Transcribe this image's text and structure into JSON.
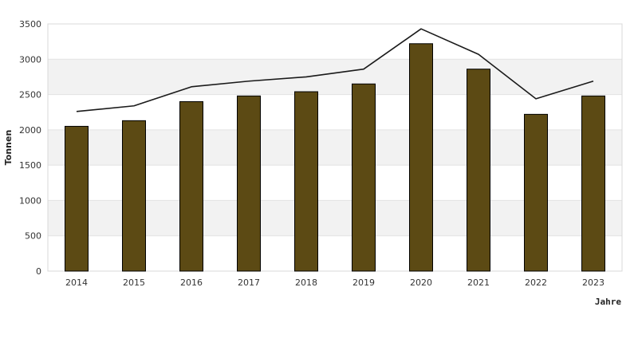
{
  "chart_data": {
    "type": "bar",
    "categories": [
      "2014",
      "2015",
      "2016",
      "2017",
      "2018",
      "2019",
      "2020",
      "2021",
      "2022",
      "2023"
    ],
    "series": [
      {
        "type": "bar",
        "values": [
          2050,
          2130,
          2400,
          2480,
          2540,
          2650,
          3220,
          2860,
          2220,
          2480
        ],
        "color": "#5c4a14"
      },
      {
        "type": "line",
        "values": [
          2260,
          2340,
          2610,
          2690,
          2750,
          2860,
          3430,
          3070,
          2440,
          2690
        ],
        "color": "#1a1a1a"
      }
    ],
    "xlabel": "Jahre",
    "ylabel": "Tonnen",
    "ylim": [
      0,
      3500
    ],
    "yticks": [
      0,
      500,
      1000,
      1500,
      2000,
      2500,
      3000,
      3500
    ],
    "grid": true
  }
}
